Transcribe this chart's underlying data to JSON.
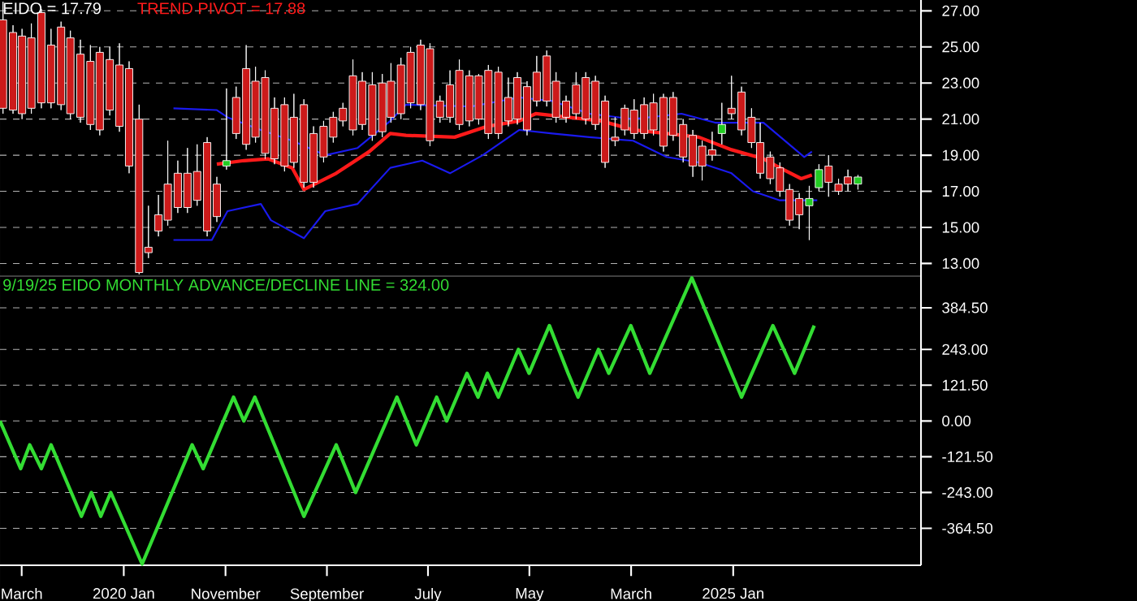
{
  "chart_data": [
    {
      "type": "candlestick",
      "annotations": [
        "EIDO = 17.79"
      ],
      "xlim": [
        "2018-12-26",
        "2026-07-18"
      ],
      "ylim": [
        12.3,
        27.6
      ],
      "grid": "y",
      "tick_labels": "y",
      "yticks": [
        {
          "value": 27,
          "label": "27.00"
        },
        {
          "value": 25,
          "label": "25.00"
        },
        {
          "value": 23,
          "label": "23.00"
        },
        {
          "value": 21,
          "label": "21.00"
        },
        {
          "value": 19,
          "label": "19.00"
        },
        {
          "value": 17,
          "label": "17.00"
        },
        {
          "value": 15,
          "label": "15.00"
        },
        {
          "value": 13,
          "label": "13.00"
        }
      ],
      "x": [
        "2019-01-04",
        "2019-02-03",
        "2019-03-02",
        "2019-03-30",
        "2019-04-29",
        "2019-05-28",
        "2019-06-27",
        "2019-07-25",
        "2019-08-24",
        "2019-09-23",
        "2019-10-21",
        "2019-11-20",
        "2019-12-19",
        "2020-01-17",
        "2020-02-16",
        "2020-03-15",
        "2020-04-14",
        "2020-05-12",
        "2020-06-11",
        "2020-07-10",
        "2020-08-08",
        "2020-09-07",
        "2020-10-06",
        "2020-11-04",
        "2020-12-03",
        "2021-01-02",
        "2021-01-30",
        "2021-02-28",
        "2021-03-28",
        "2021-04-27",
        "2021-05-25",
        "2021-06-24",
        "2021-07-23",
        "2021-08-22",
        "2021-09-20",
        "2021-10-19",
        "2021-11-18",
        "2021-12-16",
        "2022-01-15",
        "2022-02-14",
        "2022-03-12",
        "2022-04-11",
        "2022-05-10",
        "2022-06-09",
        "2022-07-07",
        "2022-08-06",
        "2022-09-05",
        "2022-10-03",
        "2022-11-02",
        "2022-11-30",
        "2022-12-29",
        "2023-01-28",
        "2023-02-27",
        "2023-03-26",
        "2023-04-24",
        "2023-05-23",
        "2023-06-22",
        "2023-07-20",
        "2023-08-19",
        "2023-09-18",
        "2023-10-17",
        "2023-11-15",
        "2023-12-14",
        "2024-01-13",
        "2024-02-11",
        "2024-03-10",
        "2024-04-09",
        "2024-05-07",
        "2024-06-06",
        "2024-07-05",
        "2024-08-04",
        "2024-09-02",
        "2024-09-30",
        "2024-10-30",
        "2024-11-28",
        "2024-12-27",
        "2025-01-26",
        "2025-02-25",
        "2025-03-23",
        "2025-04-22",
        "2025-05-21",
        "2025-06-19",
        "2025-07-18",
        "2025-08-17",
        "2025-09-15",
        "2025-10-14",
        "2025-11-13",
        "2025-12-11",
        "2026-01-10"
      ],
      "ohlc": [
        [
          26.5,
          27.5,
          21.3,
          21.6
        ],
        [
          25.8,
          26.2,
          21.3,
          21.5
        ],
        [
          25.6,
          26.0,
          21.0,
          21.3
        ],
        [
          25.5,
          26.3,
          21.3,
          21.6
        ],
        [
          26.9,
          27.1,
          21.6,
          21.9
        ],
        [
          25.1,
          26.0,
          21.6,
          21.9
        ],
        [
          26.1,
          26.4,
          21.5,
          21.8
        ],
        [
          25.5,
          25.9,
          21.0,
          21.3
        ],
        [
          24.6,
          25.4,
          20.8,
          21.1
        ],
        [
          24.2,
          25.1,
          20.4,
          20.7
        ],
        [
          24.7,
          25.0,
          20.1,
          20.4
        ],
        [
          24.3,
          25.0,
          21.2,
          21.5
        ],
        [
          24.0,
          25.2,
          20.3,
          20.6
        ],
        [
          23.8,
          24.2,
          18.0,
          18.4
        ],
        [
          21.0,
          21.8,
          12.4,
          12.5
        ],
        [
          13.9,
          16.2,
          13.3,
          13.6
        ],
        [
          15.7,
          16.8,
          14.5,
          14.8
        ],
        [
          17.4,
          19.8,
          15.1,
          15.4
        ],
        [
          18.0,
          18.7,
          15.8,
          16.1
        ],
        [
          18.0,
          19.4,
          15.8,
          16.1
        ],
        [
          18.1,
          19.6,
          16.2,
          16.5
        ],
        [
          19.7,
          20.0,
          14.5,
          14.8
        ],
        [
          17.4,
          17.8,
          15.3,
          15.6
        ],
        [
          18.4,
          22.7,
          18.2,
          18.7
        ],
        [
          22.2,
          22.8,
          19.9,
          20.2
        ],
        [
          23.8,
          25.1,
          19.3,
          19.6
        ],
        [
          23.1,
          23.9,
          19.7,
          20.0
        ],
        [
          23.3,
          23.7,
          18.8,
          19.1
        ],
        [
          21.6,
          22.2,
          18.5,
          18.8
        ],
        [
          21.8,
          22.2,
          18.1,
          18.4
        ],
        [
          21.1,
          22.4,
          18.3,
          18.6
        ],
        [
          21.8,
          22.1,
          17.2,
          17.5
        ],
        [
          20.2,
          20.6,
          17.2,
          17.5
        ],
        [
          20.6,
          20.9,
          18.6,
          18.9
        ],
        [
          21.1,
          21.4,
          19.7,
          20.0
        ],
        [
          21.6,
          21.9,
          20.6,
          20.9
        ],
        [
          23.4,
          24.3,
          20.1,
          20.4
        ],
        [
          23.1,
          23.6,
          20.4,
          20.7
        ],
        [
          22.9,
          23.6,
          19.8,
          20.1
        ],
        [
          23.0,
          23.5,
          20.0,
          20.3
        ],
        [
          23.1,
          24.1,
          20.8,
          21.1
        ],
        [
          24.0,
          24.4,
          21.0,
          21.3
        ],
        [
          24.7,
          25.0,
          21.6,
          21.9
        ],
        [
          25.1,
          25.4,
          21.5,
          21.8
        ],
        [
          24.9,
          25.2,
          19.5,
          19.8
        ],
        [
          22.0,
          22.3,
          20.8,
          21.1
        ],
        [
          22.9,
          23.7,
          20.8,
          21.1
        ],
        [
          23.7,
          24.3,
          20.4,
          20.7
        ],
        [
          23.4,
          23.7,
          20.6,
          20.9
        ],
        [
          23.4,
          23.5,
          20.7,
          21.0
        ],
        [
          23.7,
          24.0,
          19.9,
          20.2
        ],
        [
          23.6,
          23.9,
          19.9,
          20.2
        ],
        [
          22.2,
          23.3,
          20.6,
          20.9
        ],
        [
          23.3,
          23.6,
          20.7,
          21.0
        ],
        [
          22.8,
          23.1,
          20.1,
          20.4
        ],
        [
          23.6,
          24.5,
          21.7,
          22.0
        ],
        [
          24.5,
          24.8,
          21.7,
          22.0
        ],
        [
          23.1,
          23.6,
          20.8,
          21.1
        ],
        [
          22.0,
          22.3,
          20.8,
          21.1
        ],
        [
          22.9,
          23.6,
          21.0,
          21.3
        ],
        [
          23.3,
          23.6,
          20.7,
          21.0
        ],
        [
          23.1,
          23.4,
          20.4,
          20.7
        ],
        [
          22.0,
          22.3,
          18.3,
          18.6
        ],
        [
          20.0,
          21.1,
          19.5,
          19.8
        ],
        [
          21.6,
          21.8,
          20.1,
          20.4
        ],
        [
          21.5,
          22.1,
          19.9,
          20.2
        ],
        [
          21.8,
          22.2,
          19.9,
          20.2
        ],
        [
          21.9,
          22.4,
          20.1,
          20.4
        ],
        [
          22.2,
          22.4,
          19.2,
          19.5
        ],
        [
          22.2,
          22.5,
          19.8,
          20.1
        ],
        [
          20.7,
          21.0,
          18.6,
          18.9
        ],
        [
          20.1,
          20.4,
          17.8,
          18.4
        ],
        [
          19.5,
          19.8,
          17.6,
          18.4
        ],
        [
          19.3,
          20.3,
          18.7,
          19.0
        ],
        [
          20.2,
          21.9,
          19.6,
          20.7
        ],
        [
          21.6,
          23.4,
          21.0,
          21.3
        ],
        [
          22.5,
          22.8,
          20.1,
          20.4
        ],
        [
          21.1,
          21.6,
          19.4,
          19.7
        ],
        [
          19.7,
          20.8,
          17.7,
          18.0
        ],
        [
          18.9,
          19.2,
          17.4,
          17.7
        ],
        [
          18.3,
          18.6,
          16.7,
          17.0
        ],
        [
          17.1,
          17.4,
          15.1,
          15.4
        ],
        [
          16.6,
          16.9,
          14.9,
          15.7
        ],
        [
          16.2,
          17.3,
          14.3,
          16.6
        ],
        [
          17.2,
          18.5,
          17.0,
          18.2
        ],
        [
          18.4,
          19.0,
          16.7,
          17.5
        ],
        [
          17.4,
          17.7,
          16.8,
          17.0
        ],
        [
          17.8,
          18.2,
          17.0,
          17.4
        ],
        [
          17.4,
          17.9,
          17.1,
          17.79
        ]
      ],
      "colors": [
        "#cc1a1a",
        "#cc1a1a",
        "#cc1a1a",
        "#cc1a1a",
        "#cc1a1a",
        "#cc1a1a",
        "#cc1a1a",
        "#cc1a1a",
        "#cc1a1a",
        "#cc1a1a",
        "#cc1a1a",
        "#cc1a1a",
        "#cc1a1a",
        "#cc1a1a",
        "#cc1a1a",
        "#cc1a1a",
        "#cc1a1a",
        "#cc1a1a",
        "#cc1a1a",
        "#cc1a1a",
        "#cc1a1a",
        "#cc1a1a",
        "#cc1a1a",
        "#22cc22",
        "#cc1a1a",
        "#cc1a1a",
        "#cc1a1a",
        "#cc1a1a",
        "#cc1a1a",
        "#cc1a1a",
        "#cc1a1a",
        "#cc1a1a",
        "#cc1a1a",
        "#cc1a1a",
        "#cc1a1a",
        "#cc1a1a",
        "#cc1a1a",
        "#cc1a1a",
        "#cc1a1a",
        "#cc1a1a",
        "#cc1a1a",
        "#cc1a1a",
        "#cc1a1a",
        "#cc1a1a",
        "#cc1a1a",
        "#cc1a1a",
        "#cc1a1a",
        "#cc1a1a",
        "#cc1a1a",
        "#cc1a1a",
        "#cc1a1a",
        "#cc1a1a",
        "#cc1a1a",
        "#cc1a1a",
        "#cc1a1a",
        "#cc1a1a",
        "#cc1a1a",
        "#cc1a1a",
        "#cc1a1a",
        "#cc1a1a",
        "#cc1a1a",
        "#cc1a1a",
        "#cc1a1a",
        "#cc1a1a",
        "#cc1a1a",
        "#cc1a1a",
        "#cc1a1a",
        "#cc1a1a",
        "#cc1a1a",
        "#cc1a1a",
        "#cc1a1a",
        "#cc1a1a",
        "#cc1a1a",
        "#cc1a1a",
        "#22cc22",
        "#cc1a1a",
        "#cc1a1a",
        "#cc1a1a",
        "#cc1a1a",
        "#cc1a1a",
        "#cc1a1a",
        "#cc1a1a",
        "#cc1a1a",
        "#22cc22",
        "#22cc22",
        "#cc1a1a",
        "#cc1a1a",
        "#cc1a1a",
        "#22cc22"
      ],
      "series": [
        {
          "type": "line",
          "name": "TREND PIVOT = 17.88",
          "color": "#ff1a1a",
          "x": [
            "2020-10-06",
            "2020-12-26",
            "2021-03-08",
            "2021-05-20",
            "2021-06-24",
            "2021-09-29",
            "2022-01-06",
            "2022-03-10",
            "2022-04-26",
            "2022-09-19",
            "2022-12-26",
            "2023-04-01",
            "2023-05-20",
            "2023-08-25",
            "2023-12-02",
            "2024-03-07",
            "2024-06-15",
            "2024-09-20",
            "2024-12-27",
            "2025-04-02",
            "2025-05-21",
            "2025-07-24",
            "2025-08-25"
          ],
          "values": [
            18.5,
            18.7,
            18.8,
            18.3,
            17.1,
            18.0,
            19.2,
            20.2,
            20.1,
            20.0,
            20.6,
            20.9,
            21.3,
            21.1,
            20.9,
            20.4,
            20.2,
            20.0,
            19.3,
            18.8,
            18.3,
            17.7,
            17.9
          ]
        },
        {
          "type": "line",
          "color": "#1a1aee",
          "x": [
            "2020-05-29",
            "2020-10-06",
            "2020-11-07",
            "2021-02-15",
            "2021-05-20",
            "2021-08-27",
            "2021-12-02",
            "2022-03-10",
            "2022-04-26",
            "2022-11-08",
            "2023-04-01",
            "2023-07-09",
            "2023-10-28",
            "2024-03-07",
            "2024-07-30",
            "2024-11-08",
            "2025-04-02",
            "2025-08-02",
            "2025-08-25"
          ],
          "values": [
            21.6,
            21.5,
            21.1,
            20.4,
            19.8,
            19.0,
            19.4,
            20.9,
            21.8,
            21.7,
            22.2,
            22.0,
            21.3,
            21.0,
            21.3,
            20.8,
            20.8,
            18.9,
            19.2
          ]
        },
        {
          "type": "line",
          "color": "#1a1aee",
          "x": [
            "2020-05-29",
            "2020-09-21",
            "2020-11-07",
            "2021-02-15",
            "2021-03-17",
            "2021-06-24",
            "2021-08-27",
            "2021-12-02",
            "2022-03-10",
            "2022-06-14",
            "2022-09-05",
            "2022-12-12",
            "2023-04-01",
            "2023-07-09",
            "2023-10-28",
            "2024-03-07",
            "2024-06-15",
            "2024-09-20",
            "2024-12-27",
            "2025-03-01",
            "2025-05-21",
            "2025-09-10"
          ],
          "values": [
            14.3,
            14.3,
            15.9,
            16.3,
            15.4,
            14.4,
            15.9,
            16.3,
            18.3,
            18.7,
            18.0,
            19.0,
            20.4,
            20.2,
            20.0,
            19.8,
            18.9,
            18.6,
            18.0,
            17.0,
            16.5,
            16.5
          ]
        }
      ]
    },
    {
      "type": "line",
      "xlim": [
        "2018-12-26",
        "2026-07-18"
      ],
      "ylim": [
        -490,
        492
      ],
      "grid": "y",
      "xticks": [
        {
          "value": "2019-03",
          "label": "March"
        },
        {
          "value": "2020-01",
          "label": "2020 Jan"
        },
        {
          "value": "2020-11",
          "label": "November"
        },
        {
          "value": "2021-09",
          "label": "September"
        },
        {
          "value": "2022-07",
          "label": "July"
        },
        {
          "value": "2023-05",
          "label": "May"
        },
        {
          "value": "2024-03",
          "label": "March"
        },
        {
          "value": "2025-01",
          "label": "2025 Jan"
        }
      ],
      "yticks": [
        {
          "value": 384.5,
          "label": "384.50"
        },
        {
          "value": 243,
          "label": "243.00"
        },
        {
          "value": 121.5,
          "label": "121.50"
        },
        {
          "value": 0,
          "label": "0.00"
        },
        {
          "value": -121.5,
          "label": "-121.50"
        },
        {
          "value": -243,
          "label": "-243.00"
        },
        {
          "value": -364.5,
          "label": "-364.50"
        }
      ],
      "series": [
        {
          "name": "9/19/25  EIDO MONTHLY ADVANCE/DECLINE LINE = 324.00",
          "color": "#33dd33",
          "x": [
            "2018-12-26",
            "2019-02-26",
            "2019-03-25",
            "2019-04-29",
            "2019-05-28",
            "2019-08-27",
            "2019-09-26",
            "2019-10-24",
            "2019-11-23",
            "2020-02-25",
            "2020-07-24",
            "2020-08-26",
            "2020-11-25",
            "2020-12-26",
            "2021-01-28",
            "2021-06-24",
            "2021-09-29",
            "2021-11-26",
            "2022-03-30",
            "2022-05-27",
            "2022-07-27",
            "2022-08-26",
            "2022-10-26",
            "2022-11-28",
            "2022-12-26",
            "2023-01-28",
            "2023-03-29",
            "2023-04-30",
            "2023-06-30",
            "2023-08-25",
            "2023-09-24",
            "2023-11-24",
            "2023-12-25",
            "2024-02-29",
            "2024-04-26",
            "2024-08-30",
            "2025-01-26",
            "2025-04-30",
            "2025-07-04",
            "2025-09-01"
          ],
          "values": [
            0,
            -162,
            -81,
            -162,
            -81,
            -324,
            -243,
            -324,
            -243,
            -486,
            -81,
            -162,
            81,
            0,
            81,
            -324,
            -81,
            -243,
            81,
            -81,
            81,
            0,
            162,
            81,
            162,
            81,
            243,
            162,
            324,
            162,
            81,
            243,
            162,
            324,
            162,
            486,
            81,
            324,
            162,
            324
          ]
        }
      ]
    }
  ]
}
